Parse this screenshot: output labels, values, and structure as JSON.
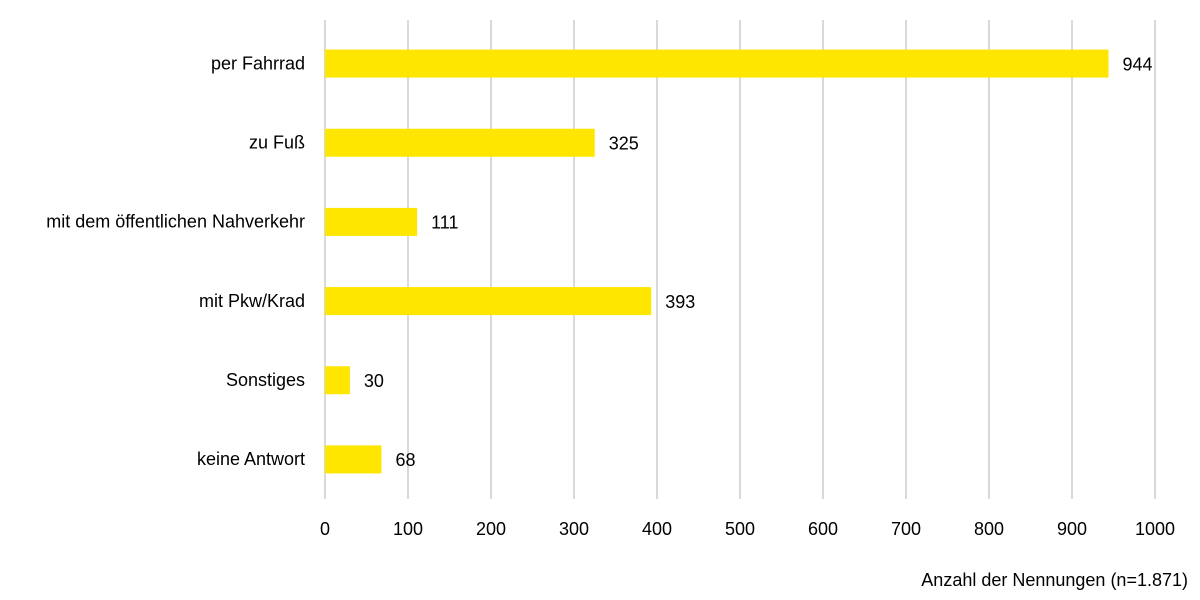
{
  "chart_data": {
    "type": "bar",
    "orientation": "horizontal",
    "categories": [
      "per Fahrrad",
      "zu Fuß",
      "mit dem öffentlichen Nahverkehr",
      "mit Pkw/Krad",
      "Sonstiges",
      "keine Antwort"
    ],
    "values": [
      944,
      325,
      111,
      393,
      30,
      68
    ],
    "color": "#ffe600",
    "xlim": [
      0,
      1000
    ],
    "xticks": [
      0,
      100,
      200,
      300,
      400,
      500,
      600,
      700,
      800,
      900,
      1000
    ],
    "xlabel": "Anzahl der Nennungen (n=1.871)",
    "grid": true
  }
}
